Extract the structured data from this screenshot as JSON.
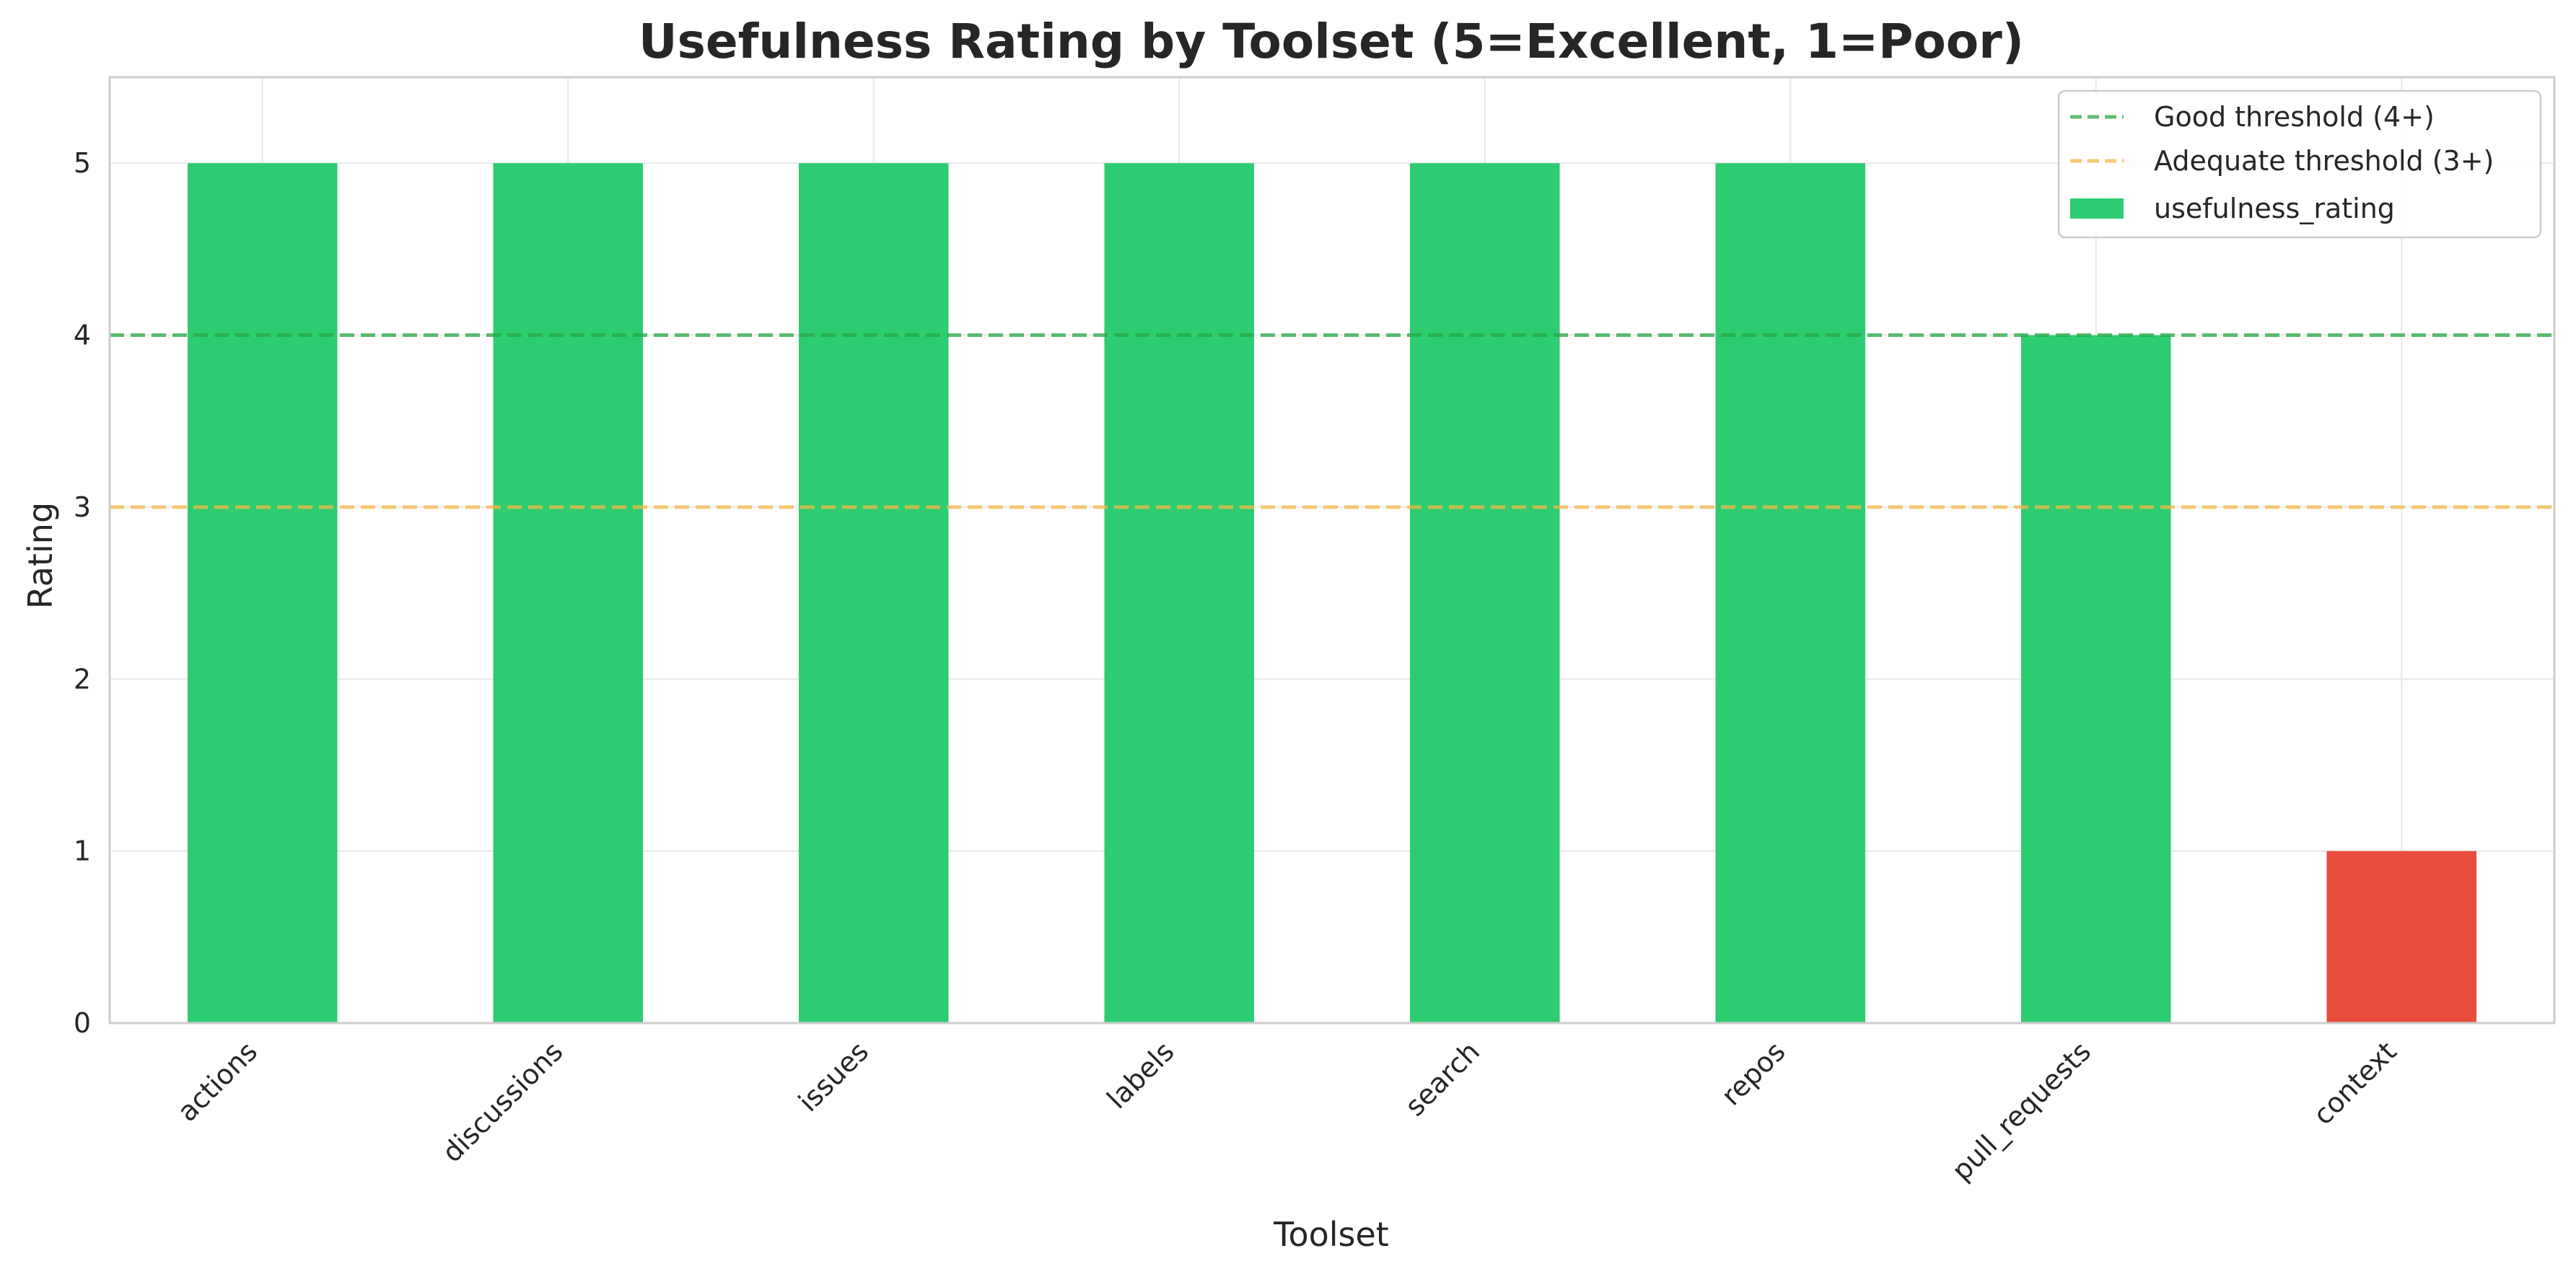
{
  "chart_data": {
    "type": "bar",
    "title": "Usefulness Rating by Toolset (5=Excellent, 1=Poor)",
    "xlabel": "Toolset",
    "ylabel": "Rating",
    "categories": [
      "actions",
      "discussions",
      "issues",
      "labels",
      "search",
      "repos",
      "pull_requests",
      "context"
    ],
    "series": [
      {
        "name": "usefulness_rating",
        "values": [
          5,
          5,
          5,
          5,
          5,
          5,
          4,
          1
        ],
        "colors": [
          "#2ecc71",
          "#2ecc71",
          "#2ecc71",
          "#2ecc71",
          "#2ecc71",
          "#2ecc71",
          "#2ecc71",
          "#e74c3c"
        ],
        "legend_color": "#2ecc71"
      }
    ],
    "reference_lines": [
      {
        "name": "Good threshold (4+)",
        "y": 4,
        "color": "#27a844",
        "style": "dashed"
      },
      {
        "name": "Adequate threshold (3+)",
        "y": 3,
        "color": "#f5b94a",
        "style": "dashed"
      }
    ],
    "ylim": [
      0,
      5.5
    ],
    "yticks": [
      "0",
      "1",
      "2",
      "3",
      "4",
      "5"
    ],
    "grid": true,
    "legend_position": "top-right",
    "colors": {
      "good": "#2ecc71",
      "poor": "#e74c3c",
      "grid": "#ebebeb",
      "axis": "#cccccc",
      "text": "#262626"
    }
  }
}
